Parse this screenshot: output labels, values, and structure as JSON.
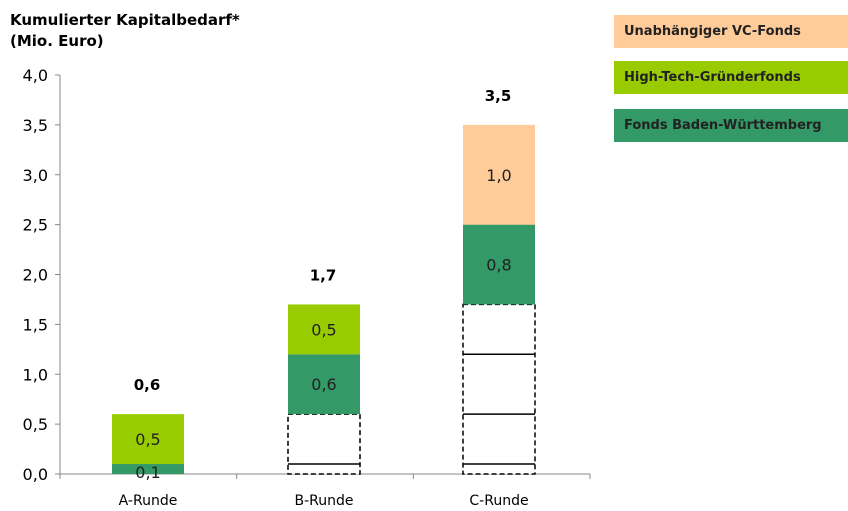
{
  "chart_data": {
    "type": "bar",
    "stacked": true,
    "title": "",
    "ylabel_lines": [
      "Kumulierter Kapitalbedarf*",
      "(Mio. Euro)"
    ],
    "categories": [
      "A-Runde",
      "B-Runde",
      "C-Runde"
    ],
    "ylim": [
      0,
      4.0
    ],
    "yticks": [
      "0,0",
      "0,5",
      "1,0",
      "1,5",
      "2,0",
      "2,5",
      "3,0",
      "3,5",
      "4,0"
    ],
    "grid": false,
    "legend_position": "top-right",
    "series": [
      {
        "name": "",
        "kind": "prior-rounds",
        "values": [
          null,
          0.6,
          1.7
        ],
        "boundaries": [
          [],
          [
            0.1
          ],
          [
            0.1,
            0.6,
            1.2
          ]
        ]
      },
      {
        "name": "Fonds Baden-Württemberg",
        "color": "#339966",
        "values": [
          0.1,
          0.6,
          0.8
        ],
        "labels": [
          "0,1",
          "0,6",
          "0,8"
        ]
      },
      {
        "name": "High-Tech-Gründerfonds",
        "color": "#99CC00",
        "values": [
          0.5,
          0.5,
          null
        ],
        "labels": [
          "0,5",
          "0,5",
          ""
        ]
      },
      {
        "name": "Unabhängiger VC-Fonds",
        "color": "#FFCC99",
        "values": [
          null,
          null,
          1.0
        ],
        "labels": [
          "",
          "",
          "1,0"
        ]
      }
    ],
    "totals": [
      0.6,
      1.7,
      3.5
    ],
    "total_labels": [
      "0,6",
      "1,7",
      "3,5"
    ]
  },
  "legend": [
    {
      "label": "Unabhängiger VC-Fonds",
      "color": "#FFCC99"
    },
    {
      "label": "High-Tech-Gründerfonds",
      "color": "#99CC00"
    },
    {
      "label": "Fonds Baden-Württemberg",
      "color": "#339966"
    }
  ]
}
